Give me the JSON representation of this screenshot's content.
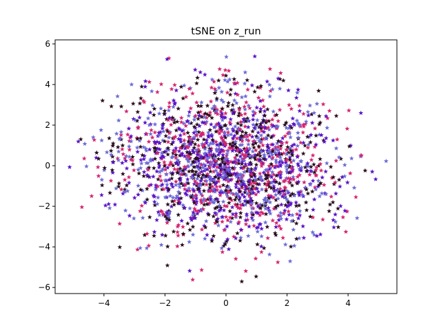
{
  "chart_data": {
    "type": "scatter",
    "title": "tSNE on z_run",
    "xlabel": "",
    "ylabel": "",
    "xlim": [
      -5.6,
      5.6
    ],
    "ylim": [
      -6.3,
      6.2
    ],
    "xticks": [
      -4,
      -2,
      0,
      2,
      4
    ],
    "yticks": [
      -6,
      -4,
      -2,
      0,
      2,
      4,
      6
    ],
    "xtick_labels": [
      "−4",
      "−2",
      "0",
      "2",
      "4"
    ],
    "ytick_labels": [
      "−6",
      "−4",
      "−2",
      "0",
      "2",
      "4",
      "6"
    ],
    "grid": false,
    "legend": "none",
    "marker": "star",
    "distribution": {
      "shape": "gaussian-like cloud centered near (0, 0)",
      "x_sd": 1.75,
      "y_sd": 1.85,
      "max_radius_x": 5.3,
      "max_radius_y": 5.8,
      "total_points": 2000
    },
    "series": [
      {
        "color": "#6b6bd6",
        "count": 500,
        "seed": 11
      },
      {
        "color": "#d6246e",
        "count": 500,
        "seed": 23
      },
      {
        "color": "#5a14c8",
        "count": 500,
        "seed": 37
      },
      {
        "color": "#2a0f1e",
        "count": 500,
        "seed": 53
      }
    ]
  }
}
